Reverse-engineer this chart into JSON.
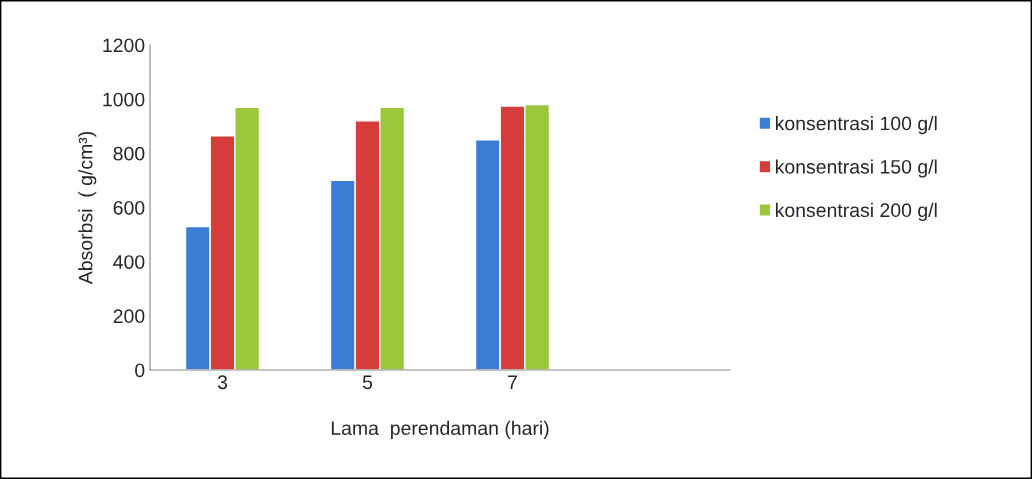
{
  "chart_data": {
    "type": "bar",
    "xlabel": "Lama  perendaman (hari)",
    "ylabel": "Absorbsi  ( g/cm³)",
    "categories": [
      "3",
      "5",
      "7",
      null
    ],
    "series": [
      {
        "name": "konsentrasi 100 g/l",
        "color": "#3c7dd4",
        "values": [
          530,
          700,
          850,
          null
        ]
      },
      {
        "name": "konsentrasi 150 g/l",
        "color": "#d63c3c",
        "values": [
          865,
          920,
          975,
          null
        ]
      },
      {
        "name": "konsentrasi 200 g/l",
        "color": "#9bc73c",
        "values": [
          970,
          970,
          980,
          null
        ]
      }
    ],
    "ylim": [
      0,
      1200
    ],
    "yticks": [
      0,
      200,
      400,
      600,
      800,
      1000,
      1200
    ],
    "grid": false,
    "legend": "right"
  }
}
